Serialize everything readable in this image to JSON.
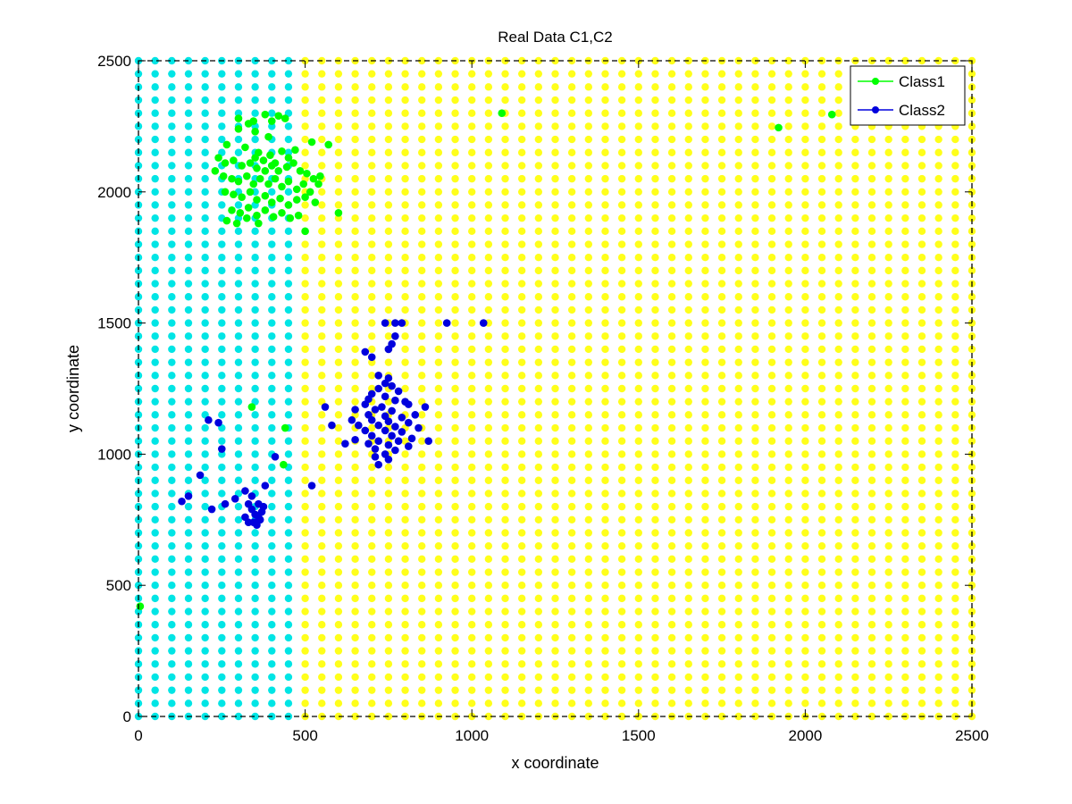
{
  "chart_data": {
    "type": "scatter",
    "title": "Real Data C1,C2",
    "xlabel": "x coordinate",
    "ylabel": "y coordinate",
    "xlim": [
      0,
      2500
    ],
    "ylim": [
      0,
      2500
    ],
    "xticks": [
      0,
      500,
      1000,
      1500,
      2000,
      2500
    ],
    "yticks": [
      0,
      500,
      1000,
      1500,
      2000,
      2500
    ],
    "grid": false,
    "legend_position": "top-right",
    "background_grid": {
      "x_step": 50,
      "y_step": 50,
      "boundary_x": 475,
      "left_color": "#00e5e5",
      "right_color": "#ffff1a"
    },
    "series": [
      {
        "name": "Class1",
        "color": "#00ff00",
        "points": [
          [
            300,
            2280
          ],
          [
            330,
            2260
          ],
          [
            345,
            2270
          ],
          [
            380,
            2295
          ],
          [
            400,
            2270
          ],
          [
            420,
            2290
          ],
          [
            440,
            2280
          ],
          [
            300,
            2240
          ],
          [
            350,
            2230
          ],
          [
            390,
            2210
          ],
          [
            265,
            2180
          ],
          [
            320,
            2170
          ],
          [
            360,
            2150
          ],
          [
            395,
            2140
          ],
          [
            430,
            2155
          ],
          [
            450,
            2130
          ],
          [
            470,
            2160
          ],
          [
            520,
            2190
          ],
          [
            570,
            2180
          ],
          [
            240,
            2130
          ],
          [
            260,
            2110
          ],
          [
            285,
            2120
          ],
          [
            310,
            2100
          ],
          [
            335,
            2110
          ],
          [
            355,
            2090
          ],
          [
            375,
            2120
          ],
          [
            400,
            2100
          ],
          [
            420,
            2080
          ],
          [
            445,
            2095
          ],
          [
            465,
            2110
          ],
          [
            485,
            2080
          ],
          [
            505,
            2070
          ],
          [
            525,
            2050
          ],
          [
            545,
            2060
          ],
          [
            230,
            2080
          ],
          [
            255,
            2060
          ],
          [
            280,
            2050
          ],
          [
            300,
            2040
          ],
          [
            325,
            2060
          ],
          [
            345,
            2030
          ],
          [
            365,
            2050
          ],
          [
            390,
            2030
          ],
          [
            410,
            2050
          ],
          [
            430,
            2020
          ],
          [
            450,
            2040
          ],
          [
            475,
            2010
          ],
          [
            495,
            2030
          ],
          [
            515,
            2000
          ],
          [
            540,
            2030
          ],
          [
            260,
            2000
          ],
          [
            285,
            1990
          ],
          [
            310,
            1980
          ],
          [
            335,
            2000
          ],
          [
            355,
            1970
          ],
          [
            380,
            1985
          ],
          [
            400,
            1960
          ],
          [
            425,
            1975
          ],
          [
            450,
            1950
          ],
          [
            475,
            1970
          ],
          [
            500,
            1980
          ],
          [
            530,
            1960
          ],
          [
            280,
            1930
          ],
          [
            305,
            1920
          ],
          [
            330,
            1940
          ],
          [
            355,
            1910
          ],
          [
            380,
            1930
          ],
          [
            405,
            1905
          ],
          [
            430,
            1920
          ],
          [
            455,
            1900
          ],
          [
            265,
            1890
          ],
          [
            295,
            1880
          ],
          [
            325,
            1900
          ],
          [
            360,
            1880
          ],
          [
            480,
            1910
          ],
          [
            500,
            1850
          ],
          [
            600,
            1920
          ],
          [
            380,
            2080
          ],
          [
            410,
            2110
          ],
          [
            350,
            2130
          ],
          [
            1090,
            2300
          ],
          [
            1920,
            2245
          ],
          [
            2080,
            2295
          ],
          [
            340,
            1180
          ],
          [
            440,
            1100
          ],
          [
            435,
            960
          ],
          [
            5,
            420
          ]
        ]
      },
      {
        "name": "Class2",
        "color": "#0000dd",
        "points": [
          [
            740,
            1500
          ],
          [
            770,
            1500
          ],
          [
            790,
            1500
          ],
          [
            925,
            1500
          ],
          [
            1035,
            1500
          ],
          [
            770,
            1450
          ],
          [
            760,
            1420
          ],
          [
            750,
            1400
          ],
          [
            680,
            1390
          ],
          [
            700,
            1370
          ],
          [
            720,
            1300
          ],
          [
            750,
            1290
          ],
          [
            740,
            1270
          ],
          [
            760,
            1260
          ],
          [
            720,
            1250
          ],
          [
            780,
            1240
          ],
          [
            700,
            1230
          ],
          [
            740,
            1220
          ],
          [
            690,
            1210
          ],
          [
            800,
            1200
          ],
          [
            770,
            1205
          ],
          [
            810,
            1190
          ],
          [
            680,
            1190
          ],
          [
            730,
            1180
          ],
          [
            860,
            1180
          ],
          [
            650,
            1170
          ],
          [
            710,
            1170
          ],
          [
            760,
            1165
          ],
          [
            830,
            1150
          ],
          [
            690,
            1150
          ],
          [
            740,
            1145
          ],
          [
            790,
            1140
          ],
          [
            640,
            1130
          ],
          [
            700,
            1130
          ],
          [
            750,
            1125
          ],
          [
            810,
            1120
          ],
          [
            660,
            1110
          ],
          [
            720,
            1110
          ],
          [
            770,
            1105
          ],
          [
            840,
            1100
          ],
          [
            680,
            1090
          ],
          [
            740,
            1090
          ],
          [
            790,
            1085
          ],
          [
            700,
            1070
          ],
          [
            760,
            1070
          ],
          [
            820,
            1060
          ],
          [
            650,
            1055
          ],
          [
            720,
            1050
          ],
          [
            780,
            1050
          ],
          [
            690,
            1040
          ],
          [
            750,
            1035
          ],
          [
            810,
            1030
          ],
          [
            710,
            1020
          ],
          [
            770,
            1015
          ],
          [
            740,
            1000
          ],
          [
            710,
            990
          ],
          [
            750,
            980
          ],
          [
            720,
            960
          ],
          [
            580,
            1110
          ],
          [
            620,
            1040
          ],
          [
            560,
            1180
          ],
          [
            870,
            1050
          ],
          [
            520,
            880
          ],
          [
            210,
            1130
          ],
          [
            240,
            1120
          ],
          [
            250,
            1020
          ],
          [
            130,
            820
          ],
          [
            150,
            840
          ],
          [
            185,
            920
          ],
          [
            220,
            790
          ],
          [
            260,
            810
          ],
          [
            290,
            830
          ],
          [
            320,
            860
          ],
          [
            380,
            880
          ],
          [
            410,
            990
          ],
          [
            330,
            810
          ],
          [
            340,
            790
          ],
          [
            350,
            770
          ],
          [
            360,
            760
          ],
          [
            370,
            780
          ],
          [
            345,
            740
          ],
          [
            355,
            730
          ],
          [
            365,
            750
          ],
          [
            330,
            740
          ],
          [
            375,
            800
          ],
          [
            360,
            810
          ],
          [
            340,
            840
          ],
          [
            320,
            760
          ]
        ]
      }
    ]
  }
}
